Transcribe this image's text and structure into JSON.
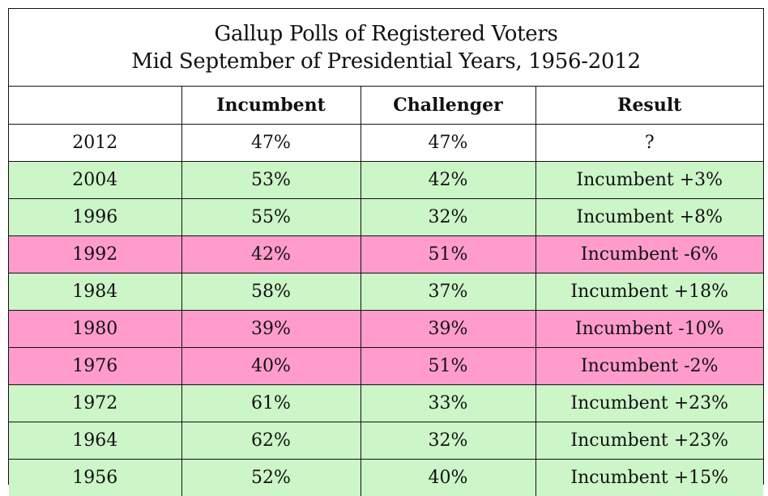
{
  "title_line1": "Gallup Polls of Registered Voters",
  "title_line2": "Mid September of Presidential Years, 1956-2012",
  "colors": {
    "win": "#ccf5c8",
    "loss": "#ff9ccc",
    "neutral": "#ffffff"
  },
  "chart_data": {
    "type": "table",
    "columns": [
      "",
      "Incumbent",
      "Challenger",
      "Result"
    ],
    "rows": [
      {
        "year": "2012",
        "incumbent": "47%",
        "challenger": "47%",
        "result": "?",
        "status": "neutral"
      },
      {
        "year": "2004",
        "incumbent": "53%",
        "challenger": "42%",
        "result": "Incumbent +3%",
        "status": "win"
      },
      {
        "year": "1996",
        "incumbent": "55%",
        "challenger": "32%",
        "result": "Incumbent +8%",
        "status": "win"
      },
      {
        "year": "1992",
        "incumbent": "42%",
        "challenger": "51%",
        "result": "Incumbent -6%",
        "status": "loss"
      },
      {
        "year": "1984",
        "incumbent": "58%",
        "challenger": "37%",
        "result": "Incumbent +18%",
        "status": "win"
      },
      {
        "year": "1980",
        "incumbent": "39%",
        "challenger": "39%",
        "result": "Incumbent -10%",
        "status": "loss"
      },
      {
        "year": "1976",
        "incumbent": "40%",
        "challenger": "51%",
        "result": "Incumbent -2%",
        "status": "loss"
      },
      {
        "year": "1972",
        "incumbent": "61%",
        "challenger": "33%",
        "result": "Incumbent +23%",
        "status": "win"
      },
      {
        "year": "1964",
        "incumbent": "62%",
        "challenger": "32%",
        "result": "Incumbent +23%",
        "status": "win"
      },
      {
        "year": "1956",
        "incumbent": "52%",
        "challenger": "40%",
        "result": "Incumbent +15%",
        "status": "win"
      }
    ]
  }
}
